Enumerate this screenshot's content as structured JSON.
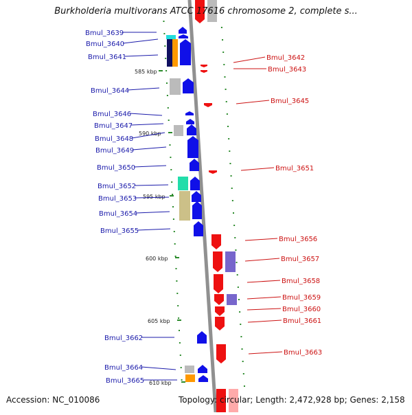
{
  "title": "Burkholderia multivorans ATCC 17616 chromosome 2, complete s...",
  "accession": "Accession: NC_010086",
  "topology": "Topology: circular; Length: 2,472,928 bp; Genes: 2,158",
  "colors": {
    "forward": "#1010e8",
    "reverse": "#ee1111",
    "ref_line": "#909090",
    "tick": "#2a8a2a",
    "label_left": "#1a1aaa",
    "label_right": "#cc1111",
    "cyan": "#22dddd",
    "navy": "#101060",
    "orange": "#ff9900",
    "gray": "#bbbbbb",
    "teal": "#22ddaa",
    "khaki": "#ccc088",
    "purple": "#7766cc"
  },
  "kbp_marks": [
    {
      "text": "585 kbp"
    },
    {
      "text": "590 kbp"
    },
    {
      "text": "595 kbp"
    },
    {
      "text": "600 kbp"
    },
    {
      "text": "605 kbp"
    },
    {
      "text": "610 kbp"
    }
  ],
  "genes_left": [
    {
      "label": "Bmul_3639"
    },
    {
      "label": "Bmul_3640"
    },
    {
      "label": "Bmul_3641"
    },
    {
      "label": "Bmul_3644"
    },
    {
      "label": "Bmul_3646"
    },
    {
      "label": "Bmul_3647"
    },
    {
      "label": "Bmul_3648"
    },
    {
      "label": "Bmul_3649"
    },
    {
      "label": "Bmul_3650"
    },
    {
      "label": "Bmul_3652"
    },
    {
      "label": "Bmul_3653"
    },
    {
      "label": "Bmul_3654"
    },
    {
      "label": "Bmul_3655"
    },
    {
      "label": "Bmul_3662"
    },
    {
      "label": "Bmul_3664"
    },
    {
      "label": "Bmul_3665"
    }
  ],
  "genes_right": [
    {
      "label": "Bmul_3642"
    },
    {
      "label": "Bmul_3643"
    },
    {
      "label": "Bmul_3645"
    },
    {
      "label": "Bmul_3651"
    },
    {
      "label": "Bmul_3656"
    },
    {
      "label": "Bmul_3657"
    },
    {
      "label": "Bmul_3658"
    },
    {
      "label": "Bmul_3659"
    },
    {
      "label": "Bmul_3660"
    },
    {
      "label": "Bmul_3661"
    },
    {
      "label": "Bmul_3663"
    }
  ]
}
